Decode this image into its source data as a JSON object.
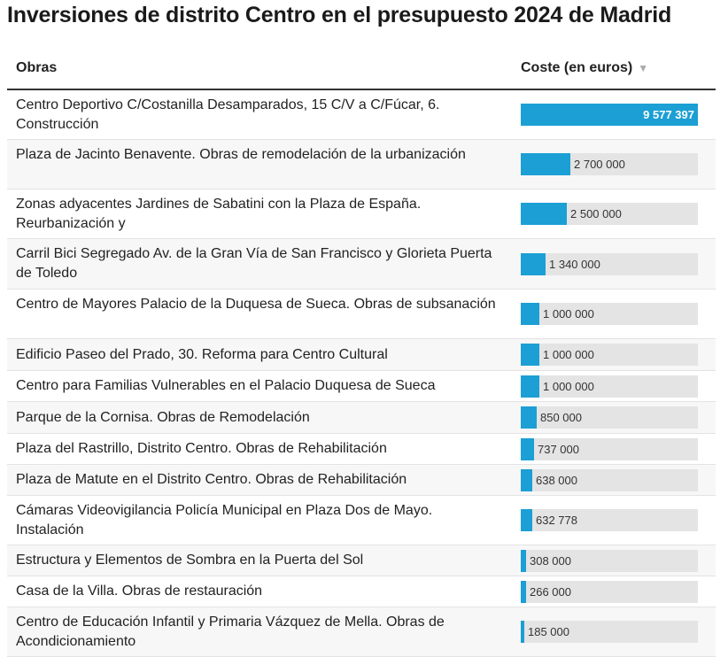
{
  "title": "Inversiones de distrito Centro en el presupuesto 2024 de Madrid",
  "header": {
    "col_obras": "Obras",
    "col_coste": "Coste (en euros)",
    "sort_icon": "sort-descending-icon"
  },
  "colors": {
    "bar": "#1b9fd4",
    "track": "#e4e4e4"
  },
  "chart_data": {
    "type": "bar",
    "orientation": "horizontal",
    "title": "Inversiones de distrito Centro en el presupuesto 2024 de Madrid",
    "max": 9577397,
    "rows": [
      {
        "name": "Centro Deportivo C/Costanilla Desamparados, 15 C/V a C/Fúcar, 6. Construcción",
        "value": 9577397,
        "label": "9 577 397"
      },
      {
        "name": "Plaza de Jacinto Benavente. Obras de remodelación de la urbanización",
        "value": 2700000,
        "label": "2 700 000"
      },
      {
        "name": "Zonas adyacentes Jardines de Sabatini con la Plaza de España. Reurbanización y",
        "value": 2500000,
        "label": "2 500 000"
      },
      {
        "name": "Carril Bici Segregado Av. de la Gran Vía de San Francisco y Glorieta Puerta de Toledo",
        "value": 1340000,
        "label": "1 340 000"
      },
      {
        "name": "Centro de Mayores Palacio de la Duquesa de Sueca. Obras de subsanación",
        "value": 1000000,
        "label": "1 000 000"
      },
      {
        "name": "Edificio Paseo del Prado, 30. Reforma para Centro Cultural",
        "value": 1000000,
        "label": "1 000 000"
      },
      {
        "name": "Centro para Familias Vulnerables en el Palacio Duquesa de Sueca",
        "value": 1000000,
        "label": "1 000 000"
      },
      {
        "name": "Parque de la Cornisa. Obras de Remodelación",
        "value": 850000,
        "label": "850 000"
      },
      {
        "name": "Plaza del Rastrillo, Distrito Centro. Obras de Rehabilitación",
        "value": 737000,
        "label": "737 000"
      },
      {
        "name": "Plaza de Matute en el Distrito Centro. Obras de Rehabilitación",
        "value": 638000,
        "label": "638 000"
      },
      {
        "name": "Cámaras Videovigilancia Policía Municipal en Plaza Dos de Mayo. Instalación",
        "value": 632778,
        "label": "632 778"
      },
      {
        "name": "Estructura y Elementos de Sombra en la Puerta del Sol",
        "value": 308000,
        "label": "308 000"
      },
      {
        "name": "Casa de la Villa. Obras de restauración",
        "value": 266000,
        "label": "266 000"
      },
      {
        "name": "Centro de Educación Infantil y Primaria Vázquez de Mella. Obras de Acondicionamiento",
        "value": 185000,
        "label": "185 000"
      }
    ]
  }
}
